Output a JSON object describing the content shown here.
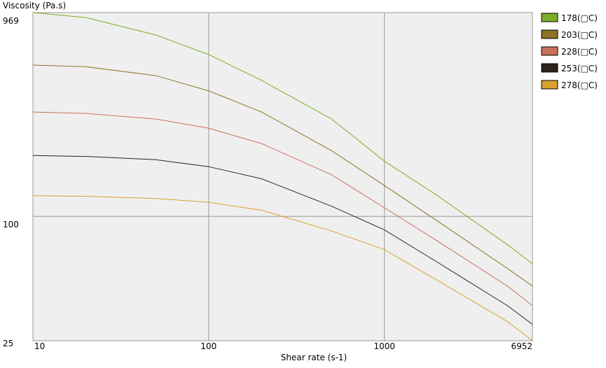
{
  "chart_data": {
    "type": "line",
    "ylabel": "Viscosity (Pa.s)",
    "xlabel": "Shear rate (s-1)",
    "log_x": true,
    "log_y": true,
    "grid": true,
    "legend": "right",
    "x": [
      10,
      20,
      50,
      100,
      200,
      500,
      1000,
      2000,
      5000,
      6952
    ],
    "xlim": [
      10,
      6952
    ],
    "xticks": [
      10,
      100,
      1000,
      6952
    ],
    "ylim": [
      25,
      969
    ],
    "yticks": [
      25,
      100,
      969
    ],
    "series": [
      {
        "name": "178(□C)",
        "color": "#7cad2a",
        "values": [
          969,
          917,
          755,
          607,
          455,
          296,
          185,
          126,
          73,
          59
        ]
      },
      {
        "name": "203(□C)",
        "color": "#8b7425",
        "values": [
          540,
          530,
          480,
          405,
          320,
          208,
          141,
          95,
          56,
          46
        ]
      },
      {
        "name": "228(□C)",
        "color": "#c9705a",
        "values": [
          320,
          315,
          296,
          267,
          225,
          159,
          110,
          76,
          46,
          37
        ]
      },
      {
        "name": "253(□C)",
        "color": "#2e2419",
        "values": [
          197,
          195,
          188,
          174,
          152,
          112,
          86,
          60,
          37,
          30
        ]
      },
      {
        "name": "278(□C)",
        "color": "#d9a22d",
        "values": [
          126,
          125,
          122,
          117,
          107,
          85,
          69,
          49,
          31,
          25
        ]
      }
    ]
  }
}
